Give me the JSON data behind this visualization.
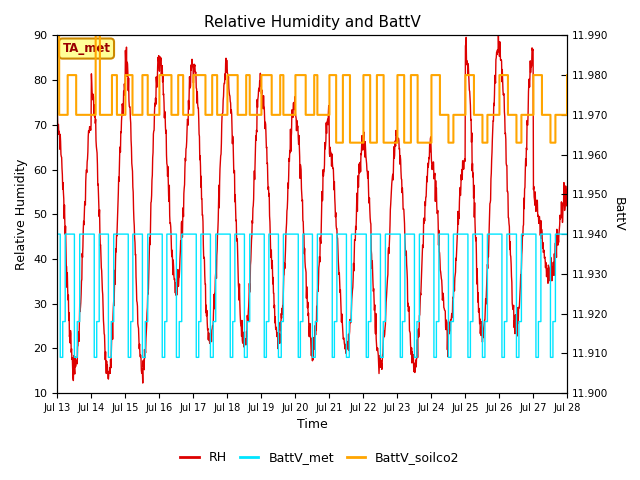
{
  "title": "Relative Humidity and BattV",
  "xlabel": "Time",
  "ylabel_left": "Relative Humidity",
  "ylabel_right": "BattV",
  "ylim_left": [
    10,
    90
  ],
  "ylim_right": [
    11.9,
    11.99
  ],
  "yticks_left": [
    10,
    20,
    30,
    40,
    50,
    60,
    70,
    80,
    90
  ],
  "yticks_right": [
    11.9,
    11.91,
    11.92,
    11.93,
    11.94,
    11.95,
    11.96,
    11.97,
    11.98,
    11.99
  ],
  "xtick_positions": [
    13,
    14,
    15,
    16,
    17,
    18,
    19,
    20,
    21,
    22,
    23,
    24,
    25,
    26,
    27,
    28
  ],
  "xtick_labels": [
    "Jul 13",
    "Jul 14",
    "Jul 15",
    "Jul 16",
    "Jul 17",
    "Jul 18",
    "Jul 19",
    "Jul 20",
    "Jul 21",
    "Jul 22",
    "Jul 23",
    "Jul 24",
    "Jul 25",
    "Jul 26",
    "Jul 27",
    "Jul 28"
  ],
  "rh_color": "#dd0000",
  "battv_met_color": "#00e5ff",
  "battv_soilco2_color": "#ffa500",
  "background_color": "#e8e8e8",
  "annotation_text": "TA_met",
  "annotation_fg": "#990000",
  "annotation_bg": "#ffff99",
  "annotation_border": "#cc8800",
  "legend_items": [
    "RH",
    "BattV_met",
    "BattV_soilco2"
  ],
  "grid_color": "#ffffff",
  "figsize": [
    6.4,
    4.8
  ],
  "dpi": 100
}
